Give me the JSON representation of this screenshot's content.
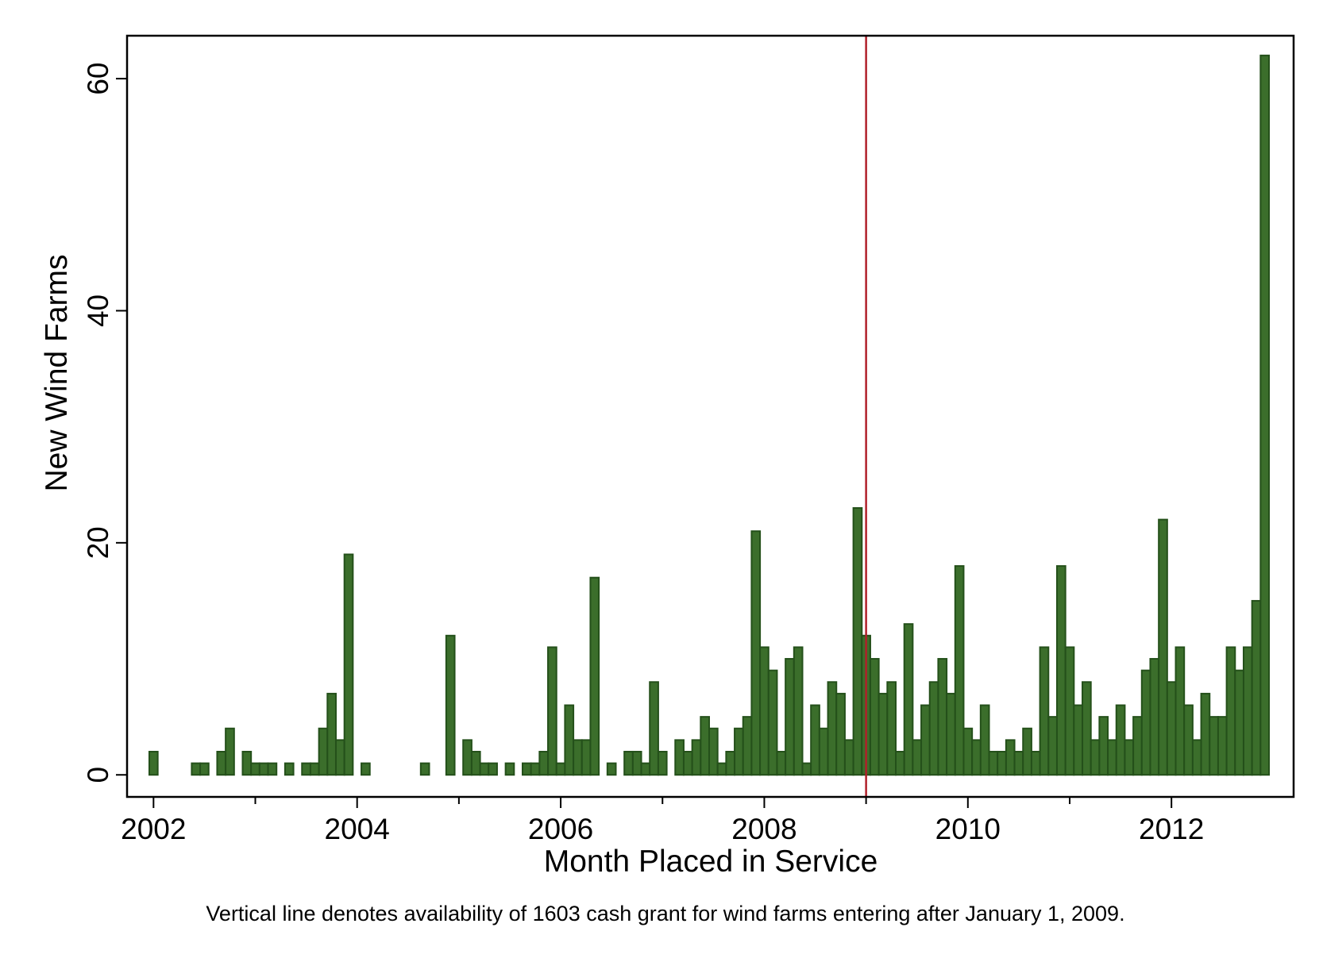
{
  "chart_data": {
    "type": "bar",
    "x_label": "Month Placed in Service",
    "y_label": "New Wind Farms",
    "caption": "Vertical line denotes availability of 1603 cash grant for wind farms entering after January 1, 2009.",
    "x": [
      2002,
      2002.0833,
      2002.1667,
      2002.25,
      2002.3333,
      2002.4167,
      2002.5,
      2002.5833,
      2002.6667,
      2002.75,
      2002.8333,
      2002.9167,
      2003,
      2003.0833,
      2003.1667,
      2003.25,
      2003.3333,
      2003.4167,
      2003.5,
      2003.5833,
      2003.6667,
      2003.75,
      2003.8333,
      2003.9167,
      2004,
      2004.0833,
      2004.1667,
      2004.25,
      2004.3333,
      2004.4167,
      2004.5,
      2004.5833,
      2004.6667,
      2004.75,
      2004.8333,
      2004.9167,
      2005,
      2005.0833,
      2005.1667,
      2005.25,
      2005.3333,
      2005.4167,
      2005.5,
      2005.5833,
      2005.6667,
      2005.75,
      2005.8333,
      2005.9167,
      2006,
      2006.0833,
      2006.1667,
      2006.25,
      2006.3333,
      2006.4167,
      2006.5,
      2006.5833,
      2006.6667,
      2006.75,
      2006.8333,
      2006.9167,
      2007,
      2007.0833,
      2007.1667,
      2007.25,
      2007.3333,
      2007.4167,
      2007.5,
      2007.5833,
      2007.6667,
      2007.75,
      2007.8333,
      2007.9167,
      2008,
      2008.0833,
      2008.1667,
      2008.25,
      2008.3333,
      2008.4167,
      2008.5,
      2008.5833,
      2008.6667,
      2008.75,
      2008.8333,
      2008.9167,
      2009,
      2009.0833,
      2009.1667,
      2009.25,
      2009.3333,
      2009.4167,
      2009.5,
      2009.5833,
      2009.6667,
      2009.75,
      2009.8333,
      2009.9167,
      2010,
      2010.0833,
      2010.1667,
      2010.25,
      2010.3333,
      2010.4167,
      2010.5,
      2010.5833,
      2010.6667,
      2010.75,
      2010.8333,
      2010.9167,
      2011,
      2011.0833,
      2011.1667,
      2011.25,
      2011.3333,
      2011.4167,
      2011.5,
      2011.5833,
      2011.6667,
      2011.75,
      2011.8333,
      2011.9167,
      2012,
      2012.0833,
      2012.1667,
      2012.25,
      2012.3333,
      2012.4167,
      2012.5,
      2012.5833,
      2012.6667,
      2012.75,
      2012.8333,
      2012.9167
    ],
    "values": [
      2,
      0,
      0,
      0,
      0,
      1,
      1,
      0,
      2,
      4,
      0,
      2,
      1,
      1,
      1,
      0,
      1,
      0,
      1,
      1,
      4,
      7,
      3,
      19,
      0,
      1,
      0,
      0,
      0,
      0,
      0,
      0,
      1,
      0,
      0,
      12,
      0,
      3,
      2,
      1,
      1,
      0,
      1,
      0,
      1,
      1,
      2,
      11,
      1,
      6,
      3,
      3,
      17,
      0,
      1,
      0,
      2,
      2,
      1,
      8,
      2,
      0,
      3,
      2,
      3,
      5,
      4,
      1,
      2,
      4,
      5,
      21,
      11,
      9,
      2,
      10,
      11,
      1,
      6,
      4,
      8,
      7,
      3,
      23,
      12,
      10,
      7,
      8,
      2,
      13,
      3,
      6,
      8,
      10,
      7,
      18,
      4,
      3,
      6,
      2,
      2,
      3,
      2,
      4,
      2,
      11,
      5,
      18,
      11,
      6,
      8,
      3,
      5,
      3,
      6,
      3,
      5,
      9,
      10,
      22,
      8,
      11,
      6,
      3,
      7,
      5,
      5,
      11,
      9,
      11,
      15,
      62
    ],
    "bar_width": 0.0833,
    "color": "#3b6e2b",
    "edge_color": "#24501a",
    "xlim": [
      2001.74,
      2013.2
    ],
    "ylim": [
      -1.9,
      63.7
    ],
    "xticks": [
      2002,
      2004,
      2006,
      2008,
      2010,
      2012
    ],
    "xminorticks": [
      2003,
      2005,
      2007,
      2009,
      2011
    ],
    "yticks": [
      0,
      20,
      40,
      60
    ],
    "vline": {
      "x": 2009,
      "color": "#b0202a"
    }
  }
}
